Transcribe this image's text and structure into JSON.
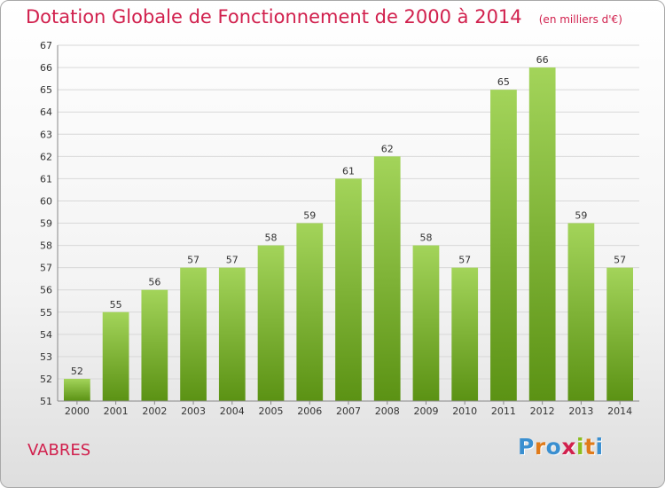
{
  "header": {
    "title": "Dotation Globale de Fonctionnement de 2000 à 2014",
    "subtitle": "(en milliers d'€)"
  },
  "commune": "VABRES",
  "logo": {
    "text": "Proxiti",
    "letter_colors": [
      "#3a8fd0",
      "#e07b1a",
      "#3a8fd0",
      "#d1204d",
      "#8bbd1f",
      "#e07b1a",
      "#3a8fd0"
    ]
  },
  "colors": {
    "title": "#d1204d",
    "bar_top": "#a3d45a",
    "bar_bottom": "#5b9214",
    "grid": "#d8d8d8"
  },
  "chart_data": {
    "type": "bar",
    "title": "Dotation Globale de Fonctionnement de 2000 à 2014",
    "subtitle": "(en milliers d'€)",
    "categories": [
      "2000",
      "2001",
      "2002",
      "2003",
      "2004",
      "2005",
      "2006",
      "2007",
      "2008",
      "2009",
      "2010",
      "2011",
      "2012",
      "2013",
      "2014"
    ],
    "values": [
      52,
      55,
      56,
      57,
      57,
      58,
      59,
      61,
      62,
      58,
      57,
      65,
      66,
      59,
      57
    ],
    "ylim": [
      51,
      67
    ],
    "yticks": [
      51,
      52,
      53,
      54,
      55,
      56,
      57,
      58,
      59,
      60,
      61,
      62,
      63,
      64,
      65,
      66,
      67
    ],
    "xlabel": "",
    "ylabel": "",
    "grid": true
  }
}
